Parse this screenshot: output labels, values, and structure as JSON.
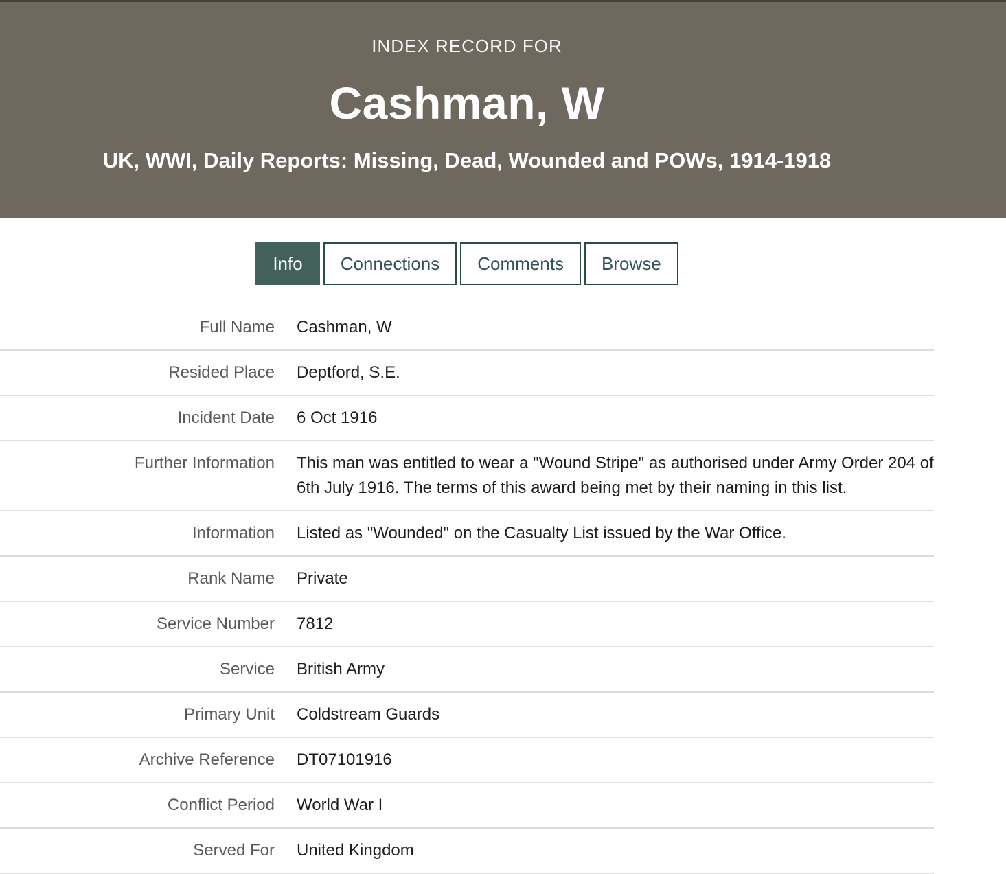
{
  "header": {
    "eyebrow": "INDEX RECORD FOR",
    "title": "Cashman, W",
    "subtitle": "UK, WWI, Daily Reports: Missing, Dead, Wounded and POWs, 1914-1918",
    "background_color": "#6e685e",
    "top_strip_color": "#45413a"
  },
  "tabs": [
    {
      "label": "Info",
      "active": true
    },
    {
      "label": "Connections",
      "active": false
    },
    {
      "label": "Comments",
      "active": false
    },
    {
      "label": "Browse",
      "active": false
    }
  ],
  "colors": {
    "tab_active_bg": "#43605a",
    "tab_border": "#2c4c46",
    "tab_text": "#34525a",
    "label_text": "#595959",
    "value_text": "#1d1d1d",
    "divider": "#dedede"
  },
  "record": {
    "fields": [
      {
        "label": "Full Name",
        "value": "Cashman, W"
      },
      {
        "label": "Resided Place",
        "value": "Deptford, S.E."
      },
      {
        "label": "Incident Date",
        "value": "6 Oct 1916"
      },
      {
        "label": "Further Information",
        "value": "This man was entitled to wear a \"Wound Stripe\" as authorised under Army Order 204 of 6th July 1916. The terms of this award being met by their naming in this list."
      },
      {
        "label": "Information",
        "value": "Listed as \"Wounded\" on the Casualty List issued by the War Office."
      },
      {
        "label": "Rank Name",
        "value": "Private"
      },
      {
        "label": "Service Number",
        "value": "7812"
      },
      {
        "label": "Service",
        "value": "British Army"
      },
      {
        "label": "Primary Unit",
        "value": "Coldstream Guards"
      },
      {
        "label": "Archive Reference",
        "value": "DT07101916"
      },
      {
        "label": "Conflict Period",
        "value": "World War I"
      },
      {
        "label": "Served For",
        "value": "United Kingdom"
      }
    ]
  }
}
